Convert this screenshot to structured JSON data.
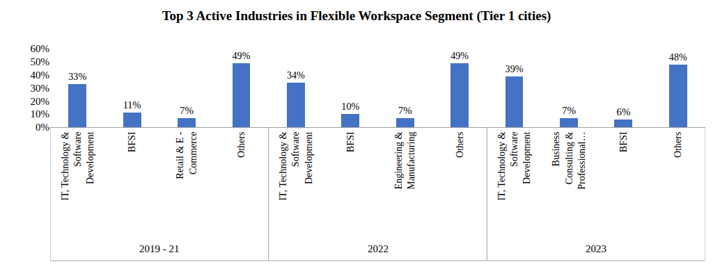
{
  "chart_data": {
    "type": "bar",
    "title": "Top 3 Active Industries in Flexible Workspace Segment (Tier 1 cities)",
    "color": "#4472c4",
    "data_labels": true,
    "grid": false,
    "ylim": [
      0,
      60
    ],
    "yticks": [
      {
        "value": 0,
        "label": "0%"
      },
      {
        "value": 10,
        "label": "10%"
      },
      {
        "value": 20,
        "label": "20%"
      },
      {
        "value": 30,
        "label": "30%"
      },
      {
        "value": 40,
        "label": "40%"
      },
      {
        "value": 50,
        "label": "50%"
      },
      {
        "value": 60,
        "label": "60%"
      }
    ],
    "groups": [
      {
        "name": "2019 - 21",
        "categories": [
          "IT, Technology & Software Development",
          "BFSI",
          "Retail & E - Commerce",
          "Others"
        ],
        "values": [
          33,
          11,
          7,
          49
        ],
        "value_labels": [
          "33%",
          "11%",
          "7%",
          "49%"
        ]
      },
      {
        "name": "2022",
        "categories": [
          "IT, Technology & Software Development",
          "BFSI",
          "Engineering & Manufacturing",
          "Others"
        ],
        "values": [
          34,
          10,
          7,
          49
        ],
        "value_labels": [
          "34%",
          "10%",
          "7%",
          "49%"
        ]
      },
      {
        "name": "2023",
        "categories": [
          "IT, Technology & Software Development",
          "Business Consulting & Professional…",
          "BFSI",
          "Others"
        ],
        "values": [
          39,
          7,
          6,
          48
        ],
        "value_labels": [
          "39%",
          "7%",
          "6%",
          "48%"
        ]
      }
    ]
  }
}
